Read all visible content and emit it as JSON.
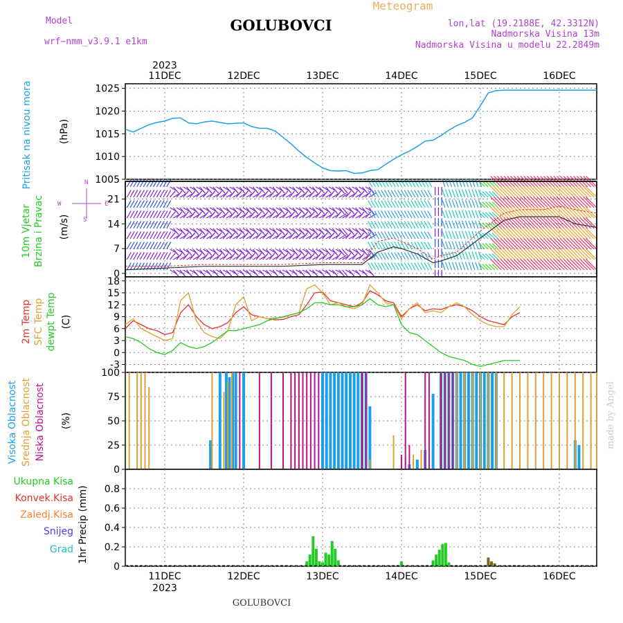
{
  "header": {
    "model_label": "Model",
    "model_name": "wrf−nmm_v3.9.1  e1km",
    "station": "GOLUBOVCI",
    "product": "Meteogram",
    "lonlat": "lon,lat (19.2188E, 42.3312N)",
    "elevation": "Nadmorska Visina 13m",
    "model_elevation": "Nadmorska Visina u modelu 22.2849m",
    "footer_station": "GOLUBOVCI",
    "watermark": "made by Angel"
  },
  "colors": {
    "pressure": "#1e9fe6",
    "wind_speed": "#333333",
    "gust": "#e83030",
    "temp2m": "#e83030",
    "sfc_temp": "#e0a030",
    "dewpt": "#22cc22",
    "high_cloud": "#1e9fe6",
    "mid_cloud": "#e0a030",
    "low_cloud": "#c0108a",
    "total_precip": "#22cc22",
    "conv_precip": "#e83030",
    "frozen_precip": "#ff8030",
    "snow": "#4040e0",
    "hail": "#20c0c0",
    "header_purple": "#b040d0",
    "product_color": "#e8b060"
  },
  "chart_data": [
    {
      "type": "line",
      "ylabel": "Pritisak na nivou mora",
      "unit": "(hPa)",
      "year": "2023",
      "ylim": [
        1005,
        1026
      ],
      "yticks": [
        "1005",
        "1010",
        "1015",
        "1020",
        "1025"
      ],
      "x_days": [
        "11DEC",
        "12DEC",
        "13DEC",
        "14DEC",
        "15DEC",
        "16DEC"
      ],
      "series": [
        {
          "x": [
            -0.5,
            -0.4,
            -0.3,
            -0.2,
            -0.1,
            0,
            0.1,
            0.2,
            0.3,
            0.4,
            0.5,
            0.6,
            0.7,
            0.8,
            0.9,
            1.0,
            1.1,
            1.2,
            1.3,
            1.4,
            1.5,
            1.6,
            1.7,
            1.8,
            1.9,
            2.0,
            2.1,
            2.2,
            2.3,
            2.4,
            2.5,
            2.6,
            2.7,
            2.8,
            2.9,
            3.0,
            3.1,
            3.2,
            3.3,
            3.4,
            3.5,
            3.6,
            3.7,
            3.8,
            3.9,
            4.0,
            4.1,
            4.2,
            4.3,
            4.4,
            4.5,
            4.6,
            4.7,
            4.8,
            4.9,
            5.0,
            5.1,
            5.2,
            5.3,
            5.4,
            5.5
          ],
          "values": [
            1016,
            1015.4,
            1016.2,
            1017,
            1017.5,
            1017.8,
            1018.4,
            1018.5,
            1017.4,
            1017.2,
            1017.6,
            1017.8,
            1017.5,
            1017.2,
            1017.3,
            1017.4,
            1016.6,
            1016.2,
            1016.2,
            1015.6,
            1014.2,
            1012.8,
            1011.2,
            1009.8,
            1008.6,
            1007.5,
            1006.9,
            1006.8,
            1006.9,
            1006.3,
            1006.4,
            1006.9,
            1007.1,
            1008.3,
            1009.4,
            1010.4,
            1011.2,
            1012.2,
            1013.4,
            1013.6,
            1014.6,
            1015.8,
            1016.8,
            1017.5,
            1018.5,
            1021.2,
            1024.0,
            1024.5,
            1024.6,
            1024.6,
            1024.6,
            1024.6,
            1024.6,
            1024.6,
            1024.6,
            1024.6,
            1024.6,
            1024.6,
            1024.6,
            1024.6,
            1024.6
          ]
        }
      ]
    },
    {
      "type": "line",
      "ylabel": "10m Vjetar Brzina i Pravac",
      "unit": "(m/s)",
      "ylim": [
        -1,
        26
      ],
      "yticks": [
        "0",
        "7",
        "14",
        "21"
      ],
      "compass": [
        "N",
        "W",
        "E",
        "S"
      ],
      "series": [
        {
          "name": "speed",
          "x": [
            -0.5,
            0,
            0.5,
            1.0,
            1.5,
            2.0,
            2.5,
            2.7,
            2.9,
            3.0,
            3.2,
            3.4,
            3.5,
            3.7,
            4.0,
            4.3,
            4.5,
            4.8,
            5.0,
            5.2,
            5.5
          ],
          "values": [
            1,
            1.5,
            2,
            2,
            2,
            2.5,
            2.5,
            6,
            7.5,
            7,
            5.5,
            3,
            3.5,
            5,
            10,
            15,
            16,
            16,
            16,
            14,
            13
          ]
        },
        {
          "name": "gust",
          "x": [
            -0.5,
            0,
            0.5,
            1.0,
            1.5,
            2.0,
            2.5,
            2.7,
            2.9,
            3.0,
            3.2,
            3.4,
            3.5,
            3.7,
            4.0,
            4.3,
            4.5,
            4.8,
            5.0,
            5.2,
            5.5
          ],
          "values": [
            2,
            2,
            2.5,
            2.5,
            2.5,
            3,
            3,
            9,
            10,
            9,
            7,
            4,
            5,
            6,
            12,
            17,
            18,
            18,
            19,
            18,
            17
          ]
        }
      ]
    },
    {
      "type": "line",
      "ylabel": "2m Temp / SFC Temp / dewpt Temp",
      "unit": "(C)",
      "ylim": [
        -5,
        19
      ],
      "yticks": [
        "-3",
        "0",
        "3",
        "6",
        "9",
        "12",
        "15",
        "18"
      ],
      "series": [
        {
          "name": "2m Temp",
          "x": [
            -0.5,
            -0.4,
            -0.3,
            -0.2,
            -0.1,
            0.0,
            0.1,
            0.2,
            0.3,
            0.4,
            0.5,
            0.6,
            0.7,
            0.8,
            0.9,
            1.0,
            1.1,
            1.2,
            1.3,
            1.4,
            1.5,
            1.6,
            1.7,
            1.8,
            1.9,
            2.0,
            2.1,
            2.2,
            2.3,
            2.4,
            2.5,
            2.6,
            2.7,
            2.8,
            2.9,
            3.0,
            3.1,
            3.2,
            3.3,
            3.4,
            3.5,
            3.6,
            3.7,
            3.8,
            3.9,
            4.0,
            4.1,
            4.2,
            4.3,
            4.4,
            4.5
          ],
          "values": [
            6,
            8,
            7,
            6,
            5.5,
            4.5,
            5,
            10,
            12,
            9,
            7,
            6,
            6.5,
            7.5,
            10,
            11.5,
            9.5,
            9,
            8.5,
            8.2,
            8.3,
            9,
            9.5,
            12,
            15,
            15.2,
            13,
            12.5,
            12,
            11.5,
            12.5,
            15.5,
            14.5,
            13,
            12.5,
            9,
            11,
            12,
            10.5,
            11,
            10.8,
            11.5,
            12,
            11.5,
            10.5,
            9,
            8,
            7.5,
            7,
            9,
            10
          ]
        },
        {
          "name": "SFC Temp",
          "x": [
            -0.5,
            -0.4,
            -0.3,
            -0.2,
            -0.1,
            0.0,
            0.1,
            0.2,
            0.3,
            0.4,
            0.5,
            0.6,
            0.7,
            0.8,
            0.9,
            1.0,
            1.1,
            1.2,
            1.3,
            1.4,
            1.5,
            1.6,
            1.7,
            1.8,
            1.9,
            2.0,
            2.1,
            2.2,
            2.3,
            2.4,
            2.5,
            2.6,
            2.7,
            2.8,
            2.9,
            3.0,
            3.1,
            3.2,
            3.3,
            3.4,
            3.5,
            3.6,
            3.7,
            3.8,
            3.9,
            4.0,
            4.1,
            4.2,
            4.3,
            4.4,
            4.5
          ],
          "values": [
            7,
            8.5,
            6,
            5,
            4,
            3,
            3.5,
            13,
            15,
            8,
            5,
            4,
            3.5,
            5.5,
            12,
            14,
            8,
            9,
            8.5,
            8.7,
            8.8,
            9.5,
            10,
            16,
            17,
            15,
            12,
            12.5,
            11.5,
            11,
            12,
            17,
            15,
            12.5,
            12,
            8.5,
            11,
            12.5,
            10,
            10.5,
            10,
            11.5,
            12.5,
            11.5,
            9.5,
            8,
            7,
            6.5,
            6.5,
            9.5,
            11.5
          ]
        },
        {
          "name": "dewpt Temp",
          "x": [
            -0.5,
            -0.4,
            -0.3,
            -0.2,
            -0.1,
            0.0,
            0.1,
            0.2,
            0.3,
            0.4,
            0.5,
            0.6,
            0.7,
            0.8,
            0.9,
            1.0,
            1.1,
            1.2,
            1.3,
            1.4,
            1.5,
            1.6,
            1.7,
            1.8,
            1.9,
            2.0,
            2.1,
            2.2,
            2.3,
            2.4,
            2.5,
            2.6,
            2.7,
            2.8,
            2.9,
            3.0,
            3.1,
            3.2,
            3.3,
            3.4,
            3.5,
            3.6,
            3.7,
            3.8,
            3.9,
            4.0,
            4.1,
            4.2,
            4.3,
            4.4,
            4.5
          ],
          "values": [
            4,
            3.5,
            2.5,
            1,
            0,
            -0.5,
            0.5,
            2.5,
            1.5,
            1,
            1.5,
            2.5,
            4,
            5.5,
            5.5,
            6,
            6.5,
            7,
            8,
            8.5,
            9,
            9.5,
            10,
            11,
            12.5,
            12.5,
            12,
            12,
            11.5,
            11.5,
            12,
            13.5,
            12,
            11.5,
            12,
            7,
            5,
            4.5,
            3,
            1.5,
            0,
            -1,
            -1.5,
            -2,
            -3,
            -3.5,
            -3,
            -2.5,
            -2,
            -2,
            -2
          ]
        }
      ]
    },
    {
      "type": "bar",
      "ylabel": "Visoka Oblacnost / Srednja Oblacnost / Niska Oblacnost",
      "unit": "(%)",
      "ylim": [
        0,
        100
      ],
      "yticks": [
        "0",
        "25",
        "50",
        "75",
        "100"
      ],
      "series": [
        {
          "name": "Visoka Oblacnost",
          "x": [
            0.58,
            0.7,
            0.78,
            0.82,
            0.86,
            0.9,
            1.0,
            2.0,
            2.05,
            2.1,
            2.15,
            2.2,
            2.25,
            2.3,
            2.35,
            2.4,
            2.45,
            2.5,
            2.55,
            2.6,
            3.1,
            3.2,
            3.3,
            3.4,
            3.5,
            3.55,
            3.6,
            3.65,
            3.7,
            3.75,
            3.8,
            3.85,
            3.9,
            3.95,
            4.0,
            4.05,
            4.1,
            4.15,
            4.2,
            5.2,
            5.25
          ],
          "values": [
            30,
            100,
            100,
            95,
            100,
            100,
            100,
            100,
            100,
            100,
            100,
            100,
            100,
            100,
            100,
            100,
            100,
            100,
            100,
            65,
            5,
            10,
            20,
            78,
            100,
            100,
            100,
            100,
            100,
            100,
            100,
            100,
            100,
            100,
            100,
            100,
            100,
            100,
            100,
            30,
            25
          ]
        },
        {
          "name": "Srednja Oblacnost",
          "x": [
            -0.45,
            -0.35,
            -0.3,
            -0.25,
            -0.2,
            0.6,
            0.75,
            0.8,
            0.85,
            1.6,
            1.7,
            2.6,
            2.9,
            3.05,
            3.15,
            3.25,
            3.6,
            3.7,
            3.8,
            3.9,
            4.0,
            4.1,
            4.2,
            4.3,
            4.4,
            4.5,
            4.6,
            4.7,
            4.8,
            4.9,
            5.0,
            5.1,
            5.2,
            5.3,
            5.4,
            5.5
          ],
          "values": [
            100,
            100,
            100,
            100,
            85,
            100,
            80,
            90,
            100,
            100,
            100,
            10,
            35,
            12,
            15,
            20,
            100,
            100,
            100,
            100,
            100,
            100,
            100,
            100,
            100,
            100,
            100,
            100,
            100,
            100,
            100,
            100,
            100,
            100,
            100,
            100
          ]
        },
        {
          "name": "Niska Oblacnost",
          "x": [
            0.95,
            1.2,
            1.35,
            1.5,
            1.6,
            1.65,
            1.7,
            1.75,
            1.8,
            1.85,
            1.9,
            1.95,
            2.5,
            2.55,
            3.0,
            3.05,
            3.1,
            3.3,
            3.35,
            3.5,
            3.55,
            3.6,
            3.65
          ],
          "values": [
            100,
            100,
            100,
            100,
            100,
            100,
            100,
            100,
            100,
            100,
            100,
            100,
            100,
            100,
            15,
            100,
            25,
            100,
            100,
            100,
            100,
            100,
            100
          ]
        }
      ]
    },
    {
      "type": "bar",
      "ylabel": "1hr Precip",
      "unit": "(mm)",
      "ylim": [
        0,
        1.0
      ],
      "yticks": [
        "0",
        "0.2",
        "0.4",
        "0.6",
        "0.8"
      ],
      "legend": [
        "Ukupna Kisa",
        "Konvek.Kisa",
        "Zaledj.Kisa",
        "Snijeg",
        "Grad"
      ],
      "series": [
        {
          "name": "Ukupna Kisa",
          "x": [
            1.8,
            1.84,
            1.88,
            1.92,
            1.96,
            2.0,
            2.04,
            2.08,
            2.12,
            2.16,
            2.2,
            3.0,
            3.4,
            3.44,
            3.48,
            3.52,
            3.56,
            3.6,
            4.1,
            4.14,
            4.18
          ],
          "values": [
            0.05,
            0.12,
            0.31,
            0.18,
            0.05,
            0.04,
            0.14,
            0.12,
            0.26,
            0.18,
            0.06,
            0.05,
            0.06,
            0.12,
            0.17,
            0.23,
            0.24,
            0.04,
            0.09,
            0.05,
            0.03
          ]
        }
      ]
    }
  ]
}
